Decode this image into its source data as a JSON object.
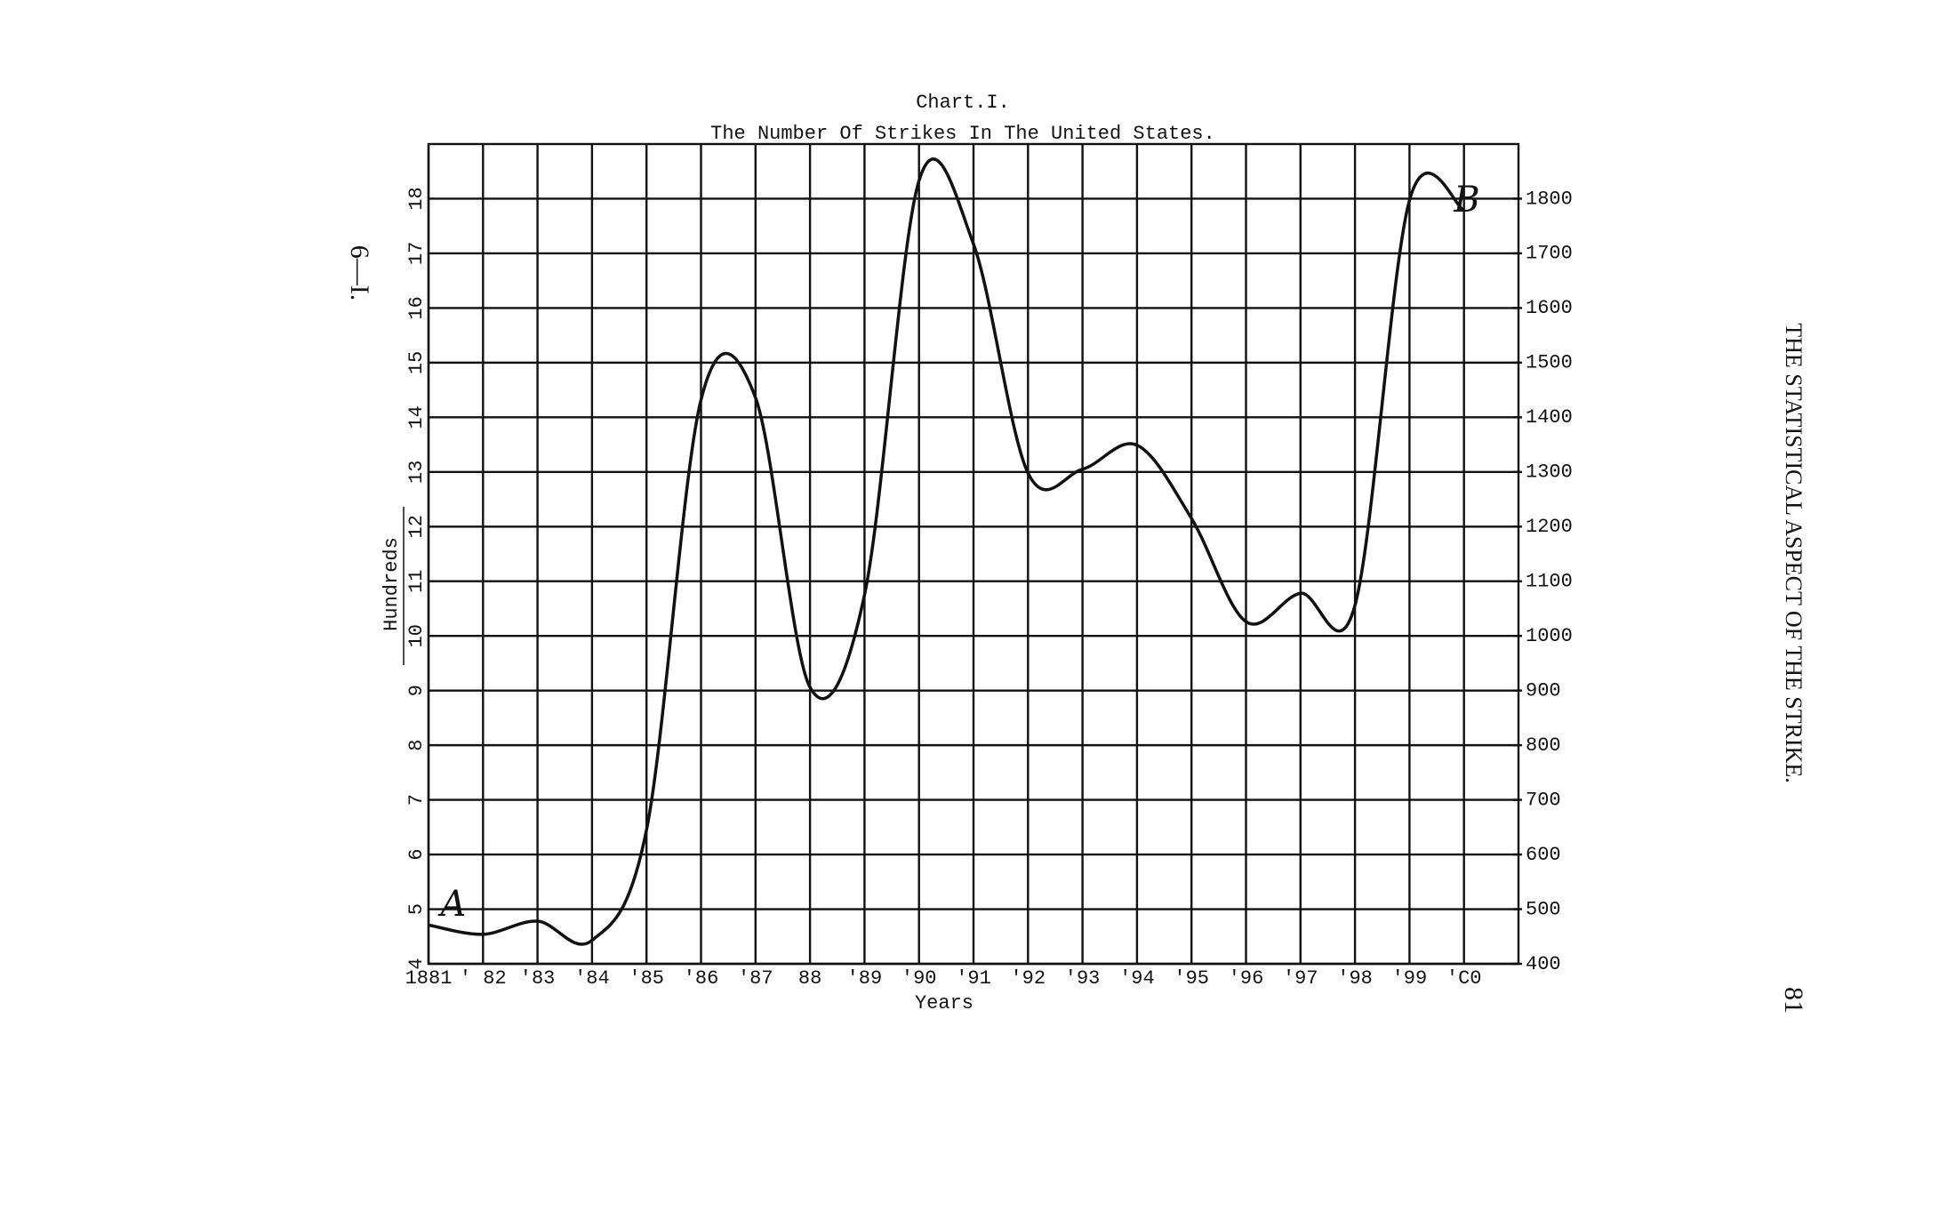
{
  "page": {
    "running_head": "THE STATISTICAL ASPECT OF THE STRIKE.",
    "page_number": "81",
    "margin_mark": "6—I."
  },
  "chart_data": {
    "type": "line",
    "title": "Chart.I.",
    "subtitle": "The Number Of Strikes In The United States.",
    "x_label": "Years",
    "y_label": "Hundreds",
    "x": [
      1881,
      1882,
      1883,
      1884,
      1885,
      1886,
      1887,
      1888,
      1889,
      1890,
      1891,
      1892,
      1893,
      1894,
      1895,
      1896,
      1897,
      1898,
      1899,
      1900
    ],
    "xlim": [
      1881,
      1901
    ],
    "xticks": [
      {
        "value": 1881,
        "label": "1881"
      },
      {
        "value": 1882,
        "label": "' 82"
      },
      {
        "value": 1883,
        "label": "'83"
      },
      {
        "value": 1884,
        "label": "'84"
      },
      {
        "value": 1885,
        "label": "'85"
      },
      {
        "value": 1886,
        "label": "'86"
      },
      {
        "value": 1887,
        "label": "'87"
      },
      {
        "value": 1888,
        "label": "88"
      },
      {
        "value": 1889,
        "label": "'89"
      },
      {
        "value": 1890,
        "label": "'90"
      },
      {
        "value": 1891,
        "label": "'91"
      },
      {
        "value": 1892,
        "label": "'92"
      },
      {
        "value": 1893,
        "label": "'93"
      },
      {
        "value": 1894,
        "label": "'94"
      },
      {
        "value": 1895,
        "label": "'95"
      },
      {
        "value": 1896,
        "label": "'96"
      },
      {
        "value": 1897,
        "label": "'97"
      },
      {
        "value": 1898,
        "label": "'98"
      },
      {
        "value": 1899,
        "label": "'99"
      },
      {
        "value": 1900,
        "label": "'C0"
      }
    ],
    "ylim": [
      4,
      19
    ],
    "yticks": [
      4,
      5,
      6,
      7,
      8,
      9,
      10,
      11,
      12,
      13,
      14,
      15,
      16,
      17,
      18
    ],
    "y2lim": [
      400,
      1900
    ],
    "y2ticks": [
      400,
      500,
      600,
      700,
      800,
      900,
      1000,
      1100,
      1200,
      1300,
      1400,
      1500,
      1600,
      1700,
      1800
    ],
    "grid": true,
    "series": [
      {
        "name": "Strikes",
        "color": "#111111",
        "axis": "y2",
        "values": [
          471,
          454,
          478,
          443,
          645,
          1432,
          1436,
          906,
          1075,
          1833,
          1717,
          1298,
          1305,
          1349,
          1215,
          1026,
          1078,
          1056,
          1797,
          1779
        ]
      }
    ],
    "annotations": [
      "A",
      "B"
    ]
  }
}
